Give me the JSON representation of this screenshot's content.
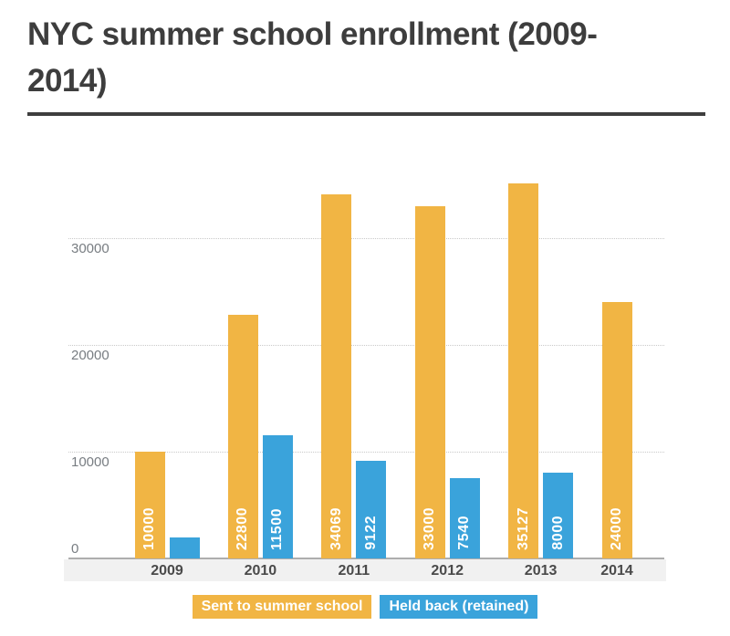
{
  "title": {
    "text": "NYC summer school enrollment  (2009-2014)",
    "lines": [
      "NYC summer school enrollment  (2009-",
      "2014)"
    ],
    "color": "#3d3d3d",
    "underline_color": "#3e3e3e"
  },
  "chart_data": {
    "type": "bar",
    "title": "NYC summer school enrollment  (2009-2014)",
    "categories": [
      "2009",
      "2010",
      "2011",
      "2012",
      "2013",
      "2014"
    ],
    "series": [
      {
        "name": "Sent to summer school",
        "color": "#F1B544",
        "values": [
          10000,
          22800,
          34069,
          33000,
          35127,
          24000
        ],
        "bar_labels": [
          "10000",
          "22800",
          "34069",
          "33000",
          "35127",
          "24000"
        ]
      },
      {
        "name": "Held back (retained)",
        "color": "#3AA3DB",
        "values": [
          2000,
          11500,
          9122,
          7540,
          8000,
          null
        ],
        "bar_labels": [
          "",
          "11500",
          "9122",
          "7540",
          "8000",
          ""
        ]
      }
    ],
    "yticks": [
      0,
      10000,
      20000,
      30000
    ],
    "ylim": [
      0,
      38300
    ],
    "xlabel": "",
    "ylabel": "",
    "grid": "horizontal-dotted",
    "legend_position": "bottom",
    "bar_label_color": "#ffffff",
    "ytick_color": "#787d82",
    "xtick_color": "#4a4a4a",
    "axis_strip_color": "#f1f1f1"
  },
  "legend": {
    "items": [
      {
        "label": "Sent to summer school",
        "color": "#F1B544"
      },
      {
        "label": "Held back (retained)",
        "color": "#3AA3DB"
      }
    ]
  }
}
